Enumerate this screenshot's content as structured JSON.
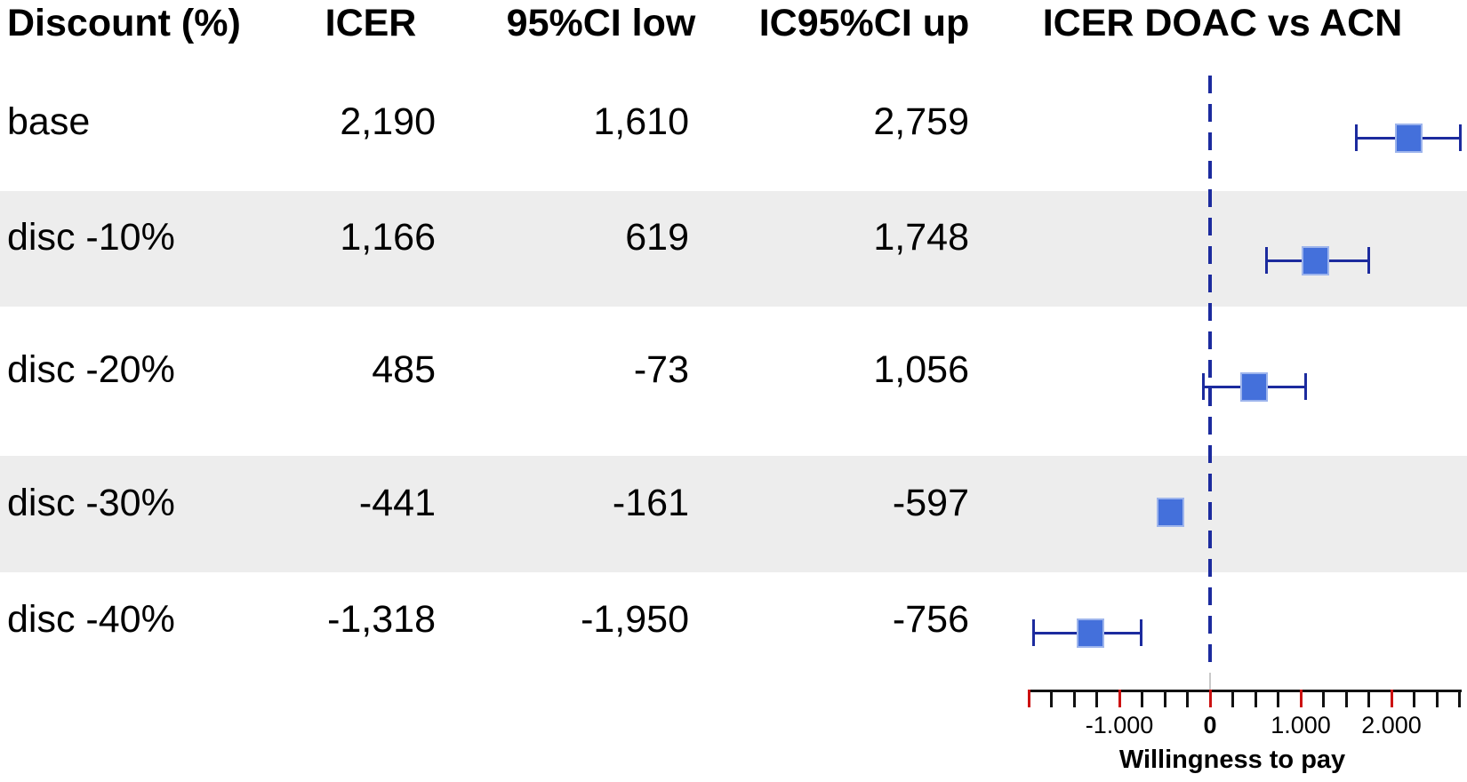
{
  "header": {
    "col_discount": "Discount (%)",
    "col_icer": "ICER",
    "col_ci_low": "95%CI low",
    "col_ci_up": "IC95%CI up",
    "col_plot": "ICER DOAC vs ACN"
  },
  "rows": [
    {
      "label": "base",
      "icer": "2,190",
      "ci_low": "1,610",
      "ci_up": "2,759",
      "icer_value": 2190,
      "low_value": 1610,
      "up_value": 2759,
      "error_bar": true
    },
    {
      "label": "disc -10%",
      "icer": "1,166",
      "ci_low": "619",
      "ci_up": "1,748",
      "icer_value": 1166,
      "low_value": 619,
      "up_value": 1748,
      "error_bar": true
    },
    {
      "label": "disc -20%",
      "icer": "485",
      "ci_low": "-73",
      "ci_up": "1,056",
      "icer_value": 485,
      "low_value": -73,
      "up_value": 1056,
      "error_bar": true
    },
    {
      "label": "disc -30%",
      "icer": "-441",
      "ci_low": "-161",
      "ci_up": "-597",
      "icer_value": -441,
      "low_value": -161,
      "up_value": -597,
      "error_bar": false
    },
    {
      "label": "disc -40%",
      "icer": "-1,318",
      "ci_low": "-1,950",
      "ci_up": "-756",
      "icer_value": -1318,
      "low_value": -1950,
      "up_value": -756,
      "error_bar": true
    }
  ],
  "axis": {
    "xlabel": "Willingness to pay",
    "min": -2000,
    "max": 2750,
    "minor_step": 250,
    "major_every": 1000,
    "tick_labels": [
      {
        "value": -1000,
        "label": "-1.000",
        "bold": false
      },
      {
        "value": 0,
        "label": "0",
        "bold": true
      },
      {
        "value": 1000,
        "label": "1.000",
        "bold": false
      },
      {
        "value": 2000,
        "label": "2.000",
        "bold": false
      }
    ]
  },
  "colors": {
    "marker": "#4470DB",
    "marker_border": "#9DB4EC",
    "error_bar": "#1C2B9E",
    "dashed_line": "#1C2B9E",
    "major_tick": "#CC1111",
    "minor_tick": "#111111",
    "axis_line": "#111111",
    "band": "#EDEDED",
    "connector": "#C9C9C9",
    "text": "#000000"
  },
  "chart_data": {
    "type": "scatter",
    "subtype": "forest-plot-with-table",
    "title": "ICER DOAC vs ACN",
    "xlabel": "Willingness to pay",
    "xlim": [
      -2000,
      2750
    ],
    "x_minor_tick_step": 250,
    "x_labeled_ticks": [
      -1000,
      0,
      1000,
      2000
    ],
    "reference_line_x": 0,
    "reference_line_style": "dashed",
    "grid": false,
    "legend": "none",
    "categories": [
      "base",
      "disc -10%",
      "disc -20%",
      "disc -30%",
      "disc -40%"
    ],
    "series": [
      {
        "name": "ICER",
        "values": [
          2190,
          1166,
          485,
          -441,
          -1318
        ]
      },
      {
        "name": "95%CI low",
        "values": [
          1610,
          619,
          -73,
          -161,
          -1950
        ]
      },
      {
        "name": "95%CI up",
        "values": [
          2759,
          1748,
          1056,
          -597,
          -756
        ]
      }
    ],
    "error_bar_visible": [
      true,
      true,
      true,
      false,
      true
    ],
    "table_columns": [
      "Discount (%)",
      "ICER",
      "95%CI low",
      "IC95%CI up"
    ],
    "row_shading": "alternating"
  }
}
